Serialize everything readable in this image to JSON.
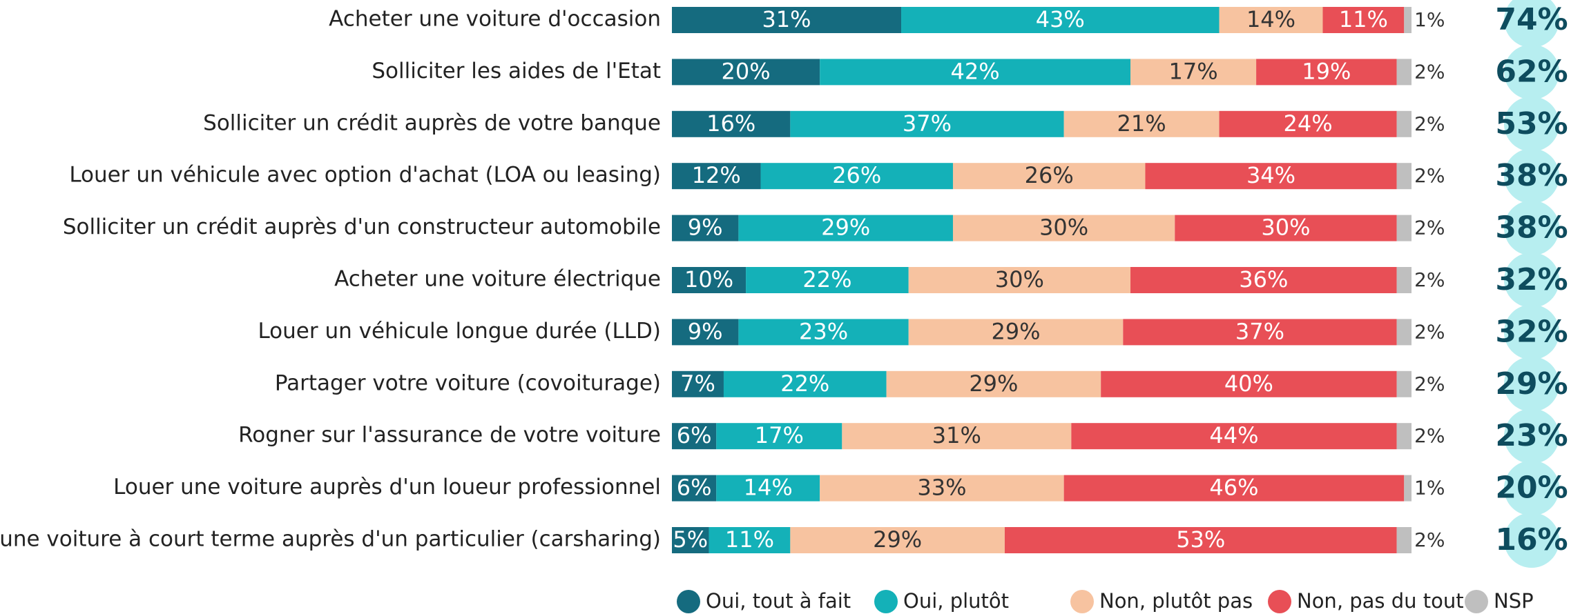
{
  "chart_data": {
    "type": "stacked_bar_horizontal",
    "categories": [
      "Acheter une voiture d'occasion",
      "Solliciter les aides de l'Etat",
      "Solliciter un crédit auprès de votre banque",
      "Louer un véhicule avec option d'achat (LOA ou leasing)",
      "Solliciter un crédit auprès d'un constructeur automobile",
      "Acheter une voiture électrique",
      "Louer un véhicule longue durée (LLD)",
      "Partager votre voiture (covoiturage)",
      "Rogner sur l'assurance de votre voiture",
      "Louer une voiture auprès d'un loueur professionnel",
      "Louer une voiture à court terme auprès d'un particulier (carsharing)"
    ],
    "xlim": [
      0,
      100
    ],
    "legend": "bottom",
    "series": [
      {
        "name": "Oui, tout à fait",
        "color": "#156b7f",
        "values": [
          31,
          20,
          16,
          12,
          9,
          10,
          9,
          7,
          6,
          6,
          5
        ],
        "value_labels": [
          "31%",
          "20%",
          "16%",
          "12%",
          "9%",
          "10%",
          "9%",
          "7%",
          "6%",
          "6%",
          "5%"
        ]
      },
      {
        "name": "Oui, plutôt",
        "color": "#14b1b8",
        "values": [
          43,
          42,
          37,
          26,
          29,
          22,
          23,
          22,
          17,
          14,
          11
        ],
        "value_labels": [
          "43%",
          "42%",
          "37%",
          "26%",
          "29%",
          "22%",
          "23%",
          "22%",
          "17%",
          "14%",
          "11%"
        ]
      },
      {
        "name": "Non, plutôt pas",
        "color": "#f7c3a0",
        "values": [
          14,
          17,
          21,
          26,
          30,
          30,
          29,
          29,
          31,
          33,
          29
        ],
        "value_labels": [
          "14%",
          "17%",
          "21%",
          "26%",
          "30%",
          "30%",
          "29%",
          "29%",
          "31%",
          "33%",
          "29%"
        ]
      },
      {
        "name": "Non, pas du tout",
        "color": "#e84f56",
        "values": [
          11,
          19,
          24,
          34,
          30,
          36,
          37,
          40,
          44,
          46,
          53
        ],
        "value_labels": [
          "11%",
          "19%",
          "24%",
          "34%",
          "30%",
          "36%",
          "37%",
          "40%",
          "44%",
          "46%",
          "53%"
        ]
      },
      {
        "name": "NSP",
        "color": "#bfbfbf",
        "values": [
          1,
          2,
          2,
          2,
          2,
          2,
          2,
          2,
          2,
          1,
          2
        ],
        "value_labels": [
          "1%",
          "2%",
          "2%",
          "2%",
          "2%",
          "2%",
          "2%",
          "2%",
          "2%",
          "1%",
          "2%"
        ]
      }
    ],
    "totals": {
      "values": [
        74,
        62,
        53,
        38,
        38,
        32,
        32,
        29,
        23,
        20,
        16
      ],
      "value_labels": [
        "74%",
        "62%",
        "53%",
        "38%",
        "38%",
        "32%",
        "32%",
        "29%",
        "23%",
        "20%",
        "16%"
      ]
    }
  }
}
